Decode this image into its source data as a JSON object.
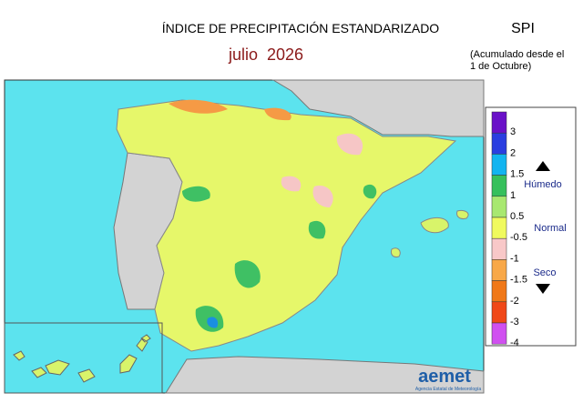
{
  "header": {
    "title": "ÍNDICE DE PRECIPITACIÓN ESTANDARIZADO",
    "period": "julio  2026",
    "index": "SPI",
    "note": [
      "(Acumulado desde el",
      "1 de Octubre)"
    ]
  },
  "legend": {
    "labels": [
      "3",
      "2",
      "1.5",
      "1",
      "0.5",
      "-0.5",
      "-1",
      "-1.5",
      "-2",
      "-3",
      "-4"
    ],
    "categories": [
      "Húmedo",
      "Normal",
      "Seco"
    ]
  },
  "logo": {
    "name": "aemet",
    "agency": "Agencia Estatal de Meteorología"
  }
}
